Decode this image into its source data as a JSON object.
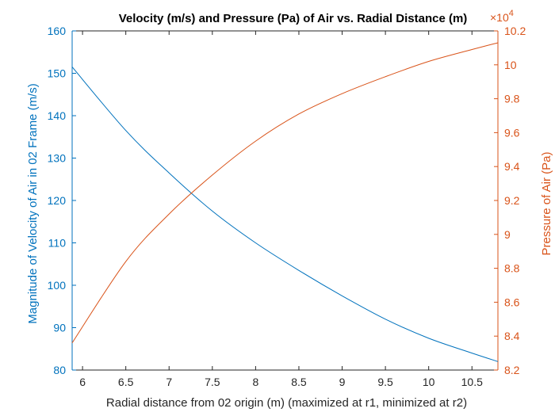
{
  "chart_data": {
    "type": "line",
    "title": "Velocity (m/s) and Pressure (Pa) of Air vs. Radial Distance (m)",
    "xlabel": "Radial distance from 02 origin (m) (maximized at r1, minimized at r2)",
    "ylabel_left": "Magnitude of Velocity of Air in 02 Frame (m/s)",
    "ylabel_right": "Pressure of Air (Pa)",
    "right_exponent_base": "×10",
    "right_exponent_power": "4",
    "xlim": [
      5.88,
      10.8
    ],
    "ylim_left": [
      80,
      160
    ],
    "ylim_right": [
      8.2,
      10.2
    ],
    "grid": false,
    "x_ticks": [
      6,
      6.5,
      7,
      7.5,
      8,
      8.5,
      9,
      9.5,
      10,
      10.5
    ],
    "x_tick_labels": [
      "6",
      "6.5",
      "7",
      "7.5",
      "8",
      "8.5",
      "9",
      "9.5",
      "10",
      "10.5"
    ],
    "y_left_ticks": [
      80,
      90,
      100,
      110,
      120,
      130,
      140,
      150,
      160
    ],
    "y_left_tick_labels": [
      "80",
      "90",
      "100",
      "110",
      "120",
      "130",
      "140",
      "150",
      "160"
    ],
    "y_right_ticks": [
      8.2,
      8.4,
      8.6,
      8.8,
      9,
      9.2,
      9.4,
      9.6,
      9.8,
      10,
      10.2
    ],
    "y_right_tick_labels": [
      "8.2",
      "8.4",
      "8.6",
      "8.8",
      "9",
      "9.2",
      "9.4",
      "9.6",
      "9.8",
      "10",
      "10.2"
    ],
    "series": [
      {
        "axis": "left",
        "color": "#0072BD",
        "x": [
          5.88,
          6.5,
          7.0,
          7.5,
          8.0,
          8.5,
          9.0,
          9.5,
          10.0,
          10.5,
          10.8
        ],
        "y": [
          151.5,
          136.5,
          126.5,
          117.5,
          110.0,
          103.5,
          97.5,
          92.0,
          87.5,
          84.0,
          82.0
        ]
      },
      {
        "axis": "right",
        "color": "#D95319",
        "x": [
          5.88,
          6.5,
          7.0,
          7.5,
          8.0,
          8.5,
          9.0,
          9.5,
          10.0,
          10.5,
          10.8
        ],
        "y": [
          8.36,
          8.84,
          9.12,
          9.35,
          9.55,
          9.71,
          9.83,
          9.93,
          10.02,
          10.09,
          10.13
        ]
      }
    ]
  }
}
